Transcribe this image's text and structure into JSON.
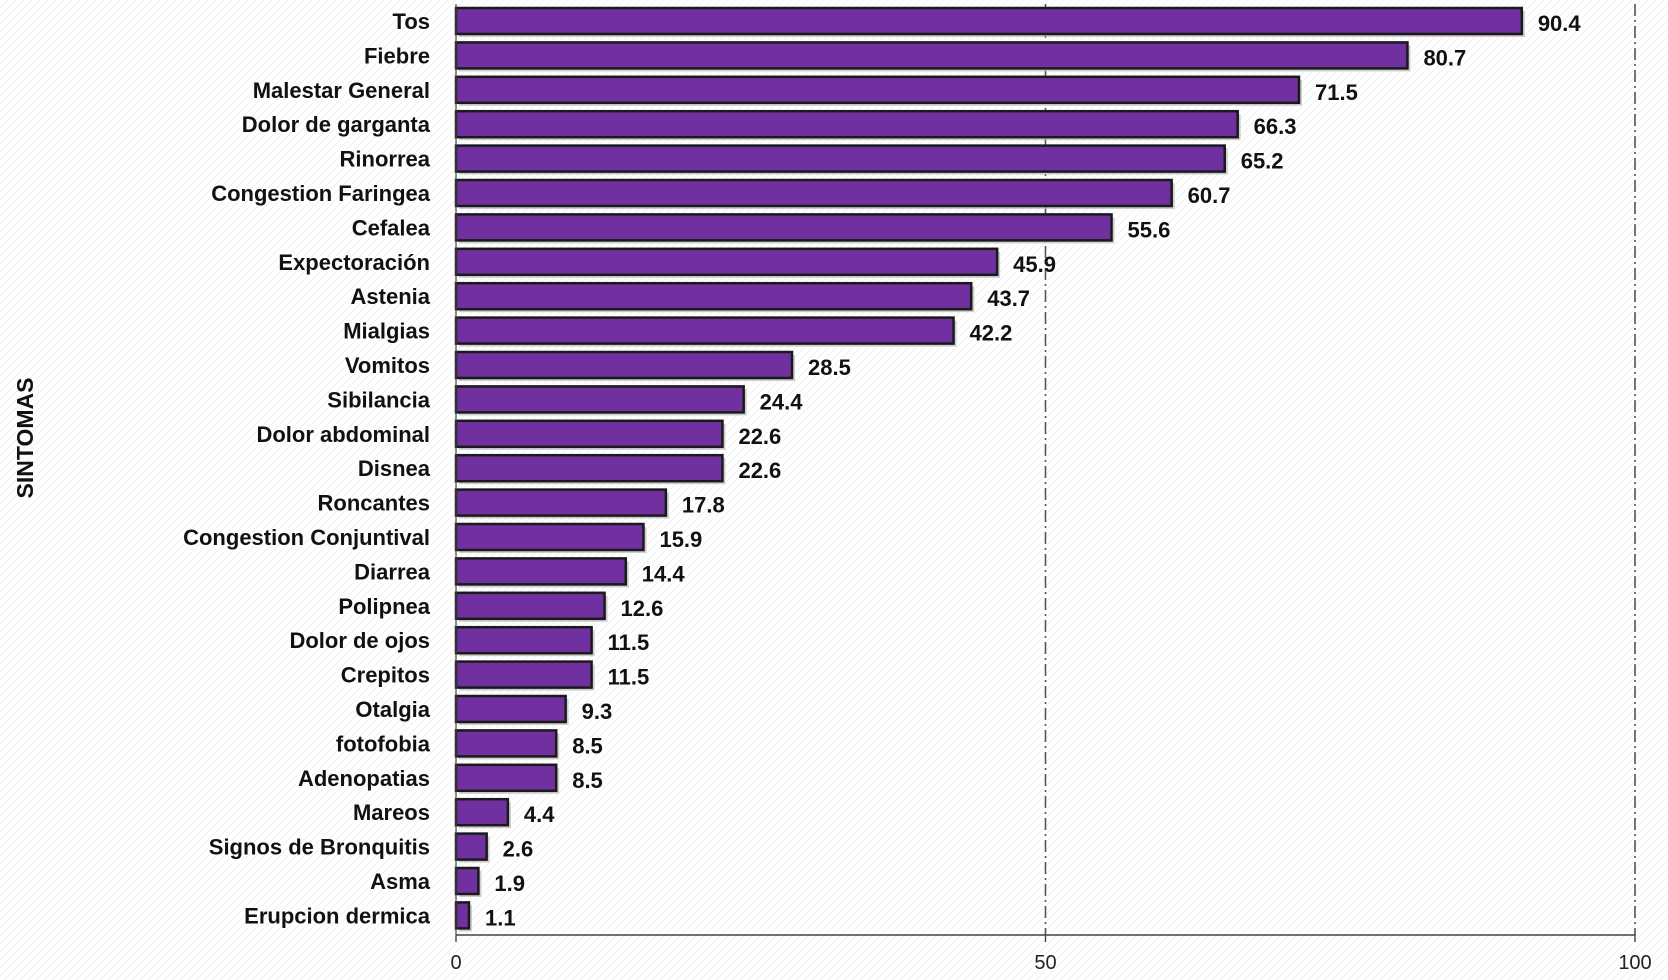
{
  "chart_data": {
    "type": "bar",
    "orientation": "horizontal",
    "title": "",
    "ylabel": "SINTOMAS",
    "xlabel": "",
    "categories": [
      "Tos",
      "Fiebre",
      "Malestar General",
      "Dolor de garganta",
      "Rinorrea",
      "Congestion Faringea",
      "Cefalea",
      "Expectoración",
      "Astenia",
      "Mialgias",
      "Vomitos",
      "Sibilancia",
      "Dolor abdominal",
      "Disnea",
      "Roncantes",
      "Congestion Conjuntival",
      "Diarrea",
      "Polipnea",
      "Dolor de ojos",
      "Crepitos",
      "Otalgia",
      "fotofobia",
      "Adenopatias",
      "Mareos",
      "Signos de Bronquitis",
      "Asma",
      "Erupcion dermica"
    ],
    "values": [
      90.4,
      80.7,
      71.5,
      66.3,
      65.2,
      60.7,
      55.6,
      45.9,
      43.7,
      42.2,
      28.5,
      24.4,
      22.6,
      22.6,
      17.8,
      15.9,
      14.4,
      12.6,
      11.5,
      11.5,
      9.3,
      8.5,
      8.5,
      4.4,
      2.6,
      1.9,
      1.1
    ],
    "value_labels": [
      "90.4",
      "80.7",
      "71.5",
      "66.3",
      "65.2",
      "60.7",
      "55.6",
      "45.9",
      "43.7",
      "42.2",
      "28.5",
      "24.4",
      "22.6",
      "22.6",
      "17.8",
      "15.9",
      "14.4",
      "12.6",
      "11.5",
      "11.5",
      "9.3",
      "8.5",
      "8.5",
      "4.4",
      "2.6",
      "1.9",
      "1.1"
    ],
    "xlim": [
      0,
      100
    ],
    "xticks": [
      "0",
      "50",
      "100"
    ],
    "grid": "vertical dash-dot lines at 50 and 100",
    "legend": "none",
    "colors": {
      "bar_fill": "#7030a0",
      "bar_edge": "#1a1a1a",
      "grid": "#555555",
      "text": "#111111"
    }
  }
}
